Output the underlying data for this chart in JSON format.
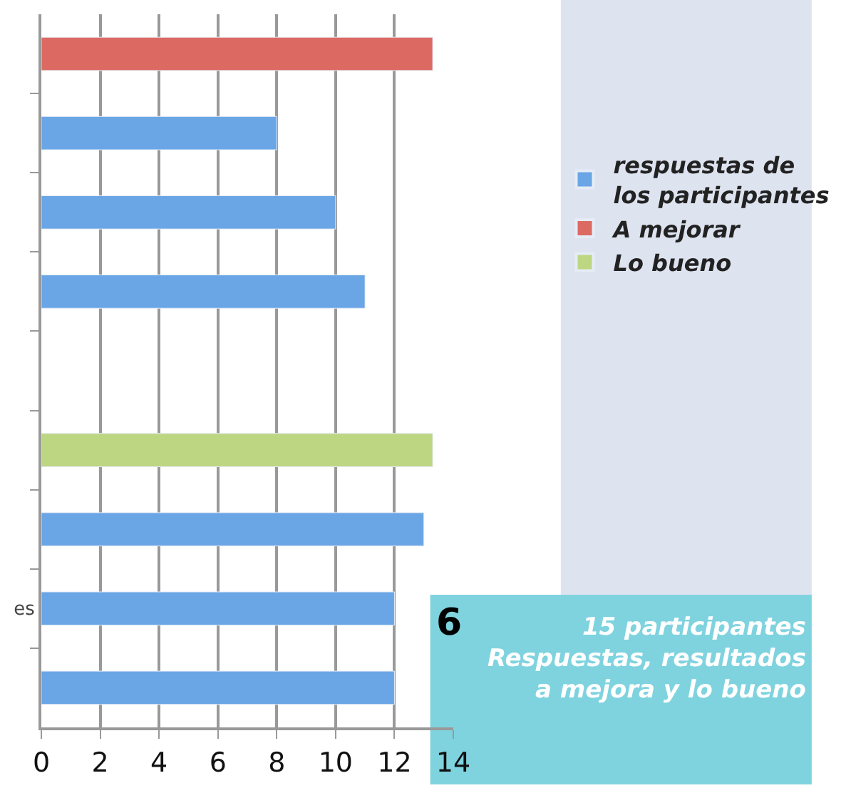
{
  "chart_data": {
    "type": "bar",
    "orientation": "horizontal",
    "categories": [
      null,
      null,
      null,
      null,
      null,
      null,
      null,
      "es",
      null
    ],
    "series": [
      {
        "name": "respuestas de\nlos participantes",
        "color": "#6aa6e6",
        "values": [
          null,
          8,
          10,
          11,
          null,
          null,
          13,
          12,
          12
        ]
      },
      {
        "name": "A mejorar",
        "color": "#dc6a63",
        "values": [
          13.3,
          null,
          null,
          null,
          null,
          null,
          null,
          null,
          null
        ]
      },
      {
        "name": "Lo bueno",
        "color": "#bdd682",
        "values": [
          null,
          null,
          null,
          null,
          null,
          13.3,
          null,
          null,
          null
        ]
      }
    ],
    "xlim": [
      0,
      14
    ],
    "xticks": [
      0,
      2,
      4,
      6,
      8,
      10,
      12,
      14
    ],
    "grid": "x",
    "legend": "right",
    "annotations": [
      "6",
      "15 participantes\nRespuestas, resultados\na mejora y lo bueno"
    ]
  }
}
